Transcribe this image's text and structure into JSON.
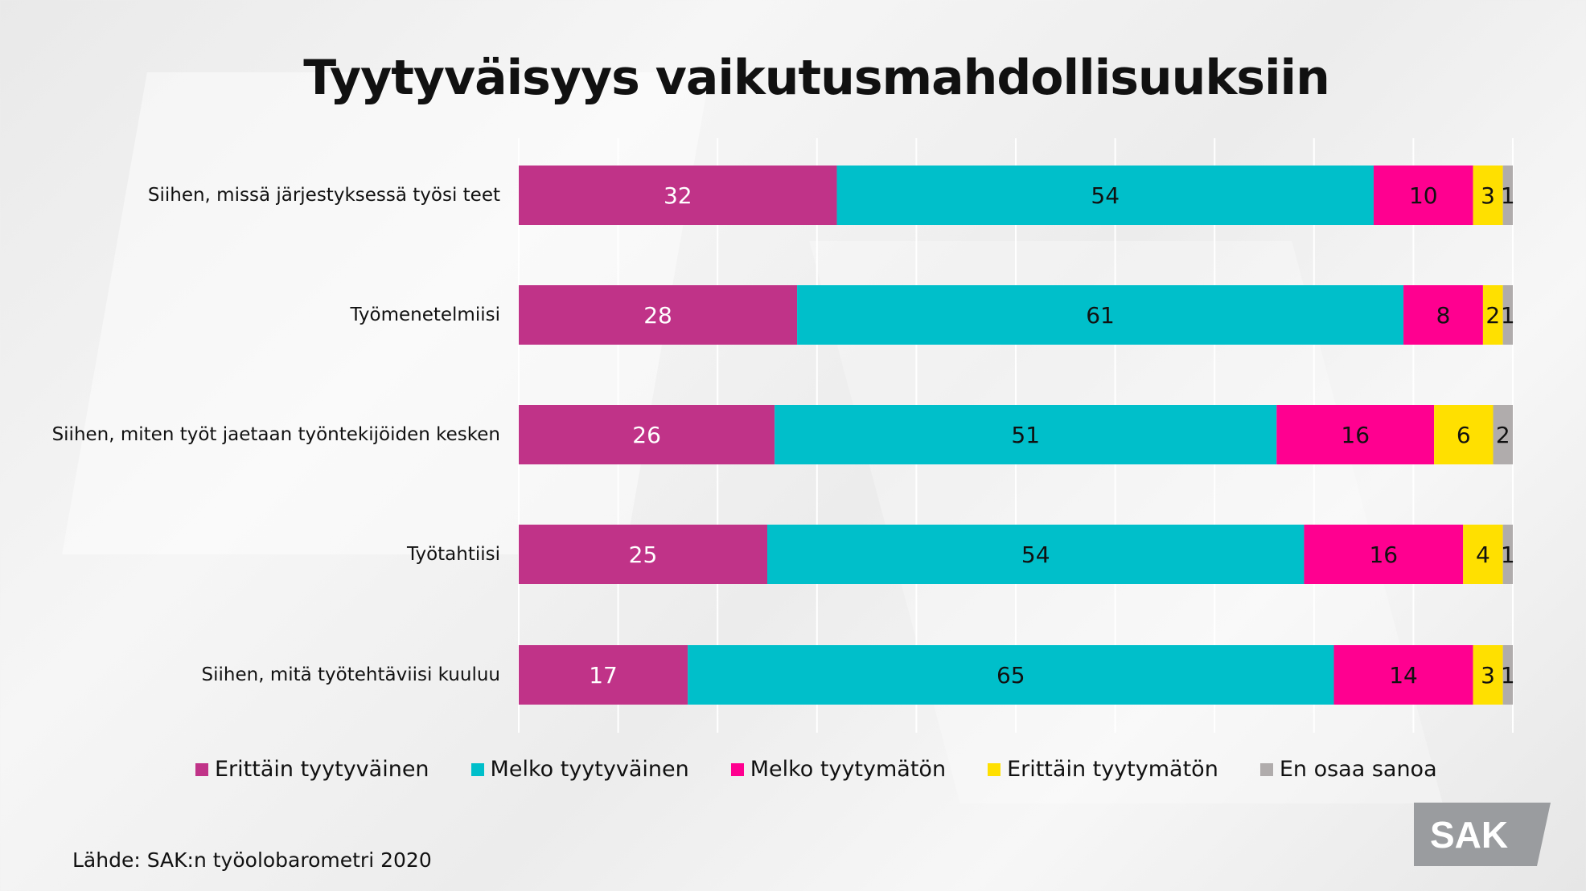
{
  "chart_data": {
    "type": "bar",
    "orientation": "horizontal-stacked-100",
    "title": "Tyytyväisyys vaikutusmahdollisuuksiin",
    "categories": [
      "Siihen, missä järjestyksessä työsi teet",
      "Työmenetelmiisi",
      "Siihen, miten työt jaetaan työntekijöiden kesken",
      "Työtahtiisi",
      "Siihen, mitä työtehtäviisi kuuluu"
    ],
    "series": [
      {
        "name": "Erittäin tyytyväinen",
        "color": "#c03388",
        "label_color": "#ffffff",
        "values": [
          32,
          28,
          26,
          25,
          17
        ]
      },
      {
        "name": "Melko tyytyväinen",
        "color": "#00bfca",
        "label_color": "#111111",
        "values": [
          54,
          61,
          51,
          54,
          65
        ]
      },
      {
        "name": "Melko tyytymätön",
        "color": "#ff0090",
        "label_color": "#111111",
        "values": [
          10,
          8,
          16,
          16,
          14
        ]
      },
      {
        "name": "Erittäin tyytymätön",
        "color": "#ffe000",
        "label_color": "#111111",
        "values": [
          3,
          2,
          6,
          4,
          3
        ]
      },
      {
        "name": "En osaa sanoa",
        "color": "#b0acac",
        "label_color": "#111111",
        "values": [
          1,
          1,
          2,
          1,
          1
        ]
      }
    ],
    "xlim": [
      0,
      100
    ],
    "grid": true,
    "legend": "bottom"
  },
  "source": "Lähde: SAK:n työolobarometri 2020",
  "logo": "SAK"
}
